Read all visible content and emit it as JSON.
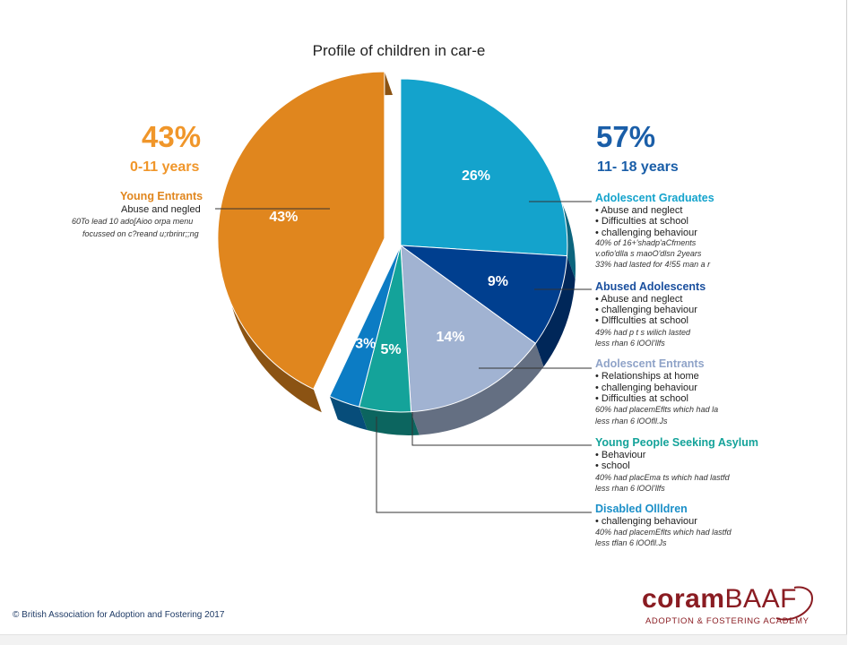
{
  "chart_data": {
    "type": "pie",
    "title": "Profile of children in car-e",
    "groups": [
      {
        "pct": "43%",
        "age": "0-11 years",
        "color": "#f0962a"
      },
      {
        "pct": "57%",
        "age": "11- 18 years",
        "color": "#1a5ea8"
      }
    ],
    "slices": [
      {
        "name": "Young Entrants",
        "value": 43,
        "label": "43%",
        "color": "#e0861e",
        "exploded": true
      },
      {
        "name": "Adolescent Graduates",
        "value": 26,
        "label": "26%",
        "color": "#14a3cc"
      },
      {
        "name": "Abused Adolescents",
        "value": 9,
        "label": "9%",
        "color": "#003f8f"
      },
      {
        "name": "Adolescent Entrants",
        "value": 14,
        "label": "14%",
        "color": "#a1b3d2"
      },
      {
        "name": "Young People Seeking Asylum",
        "value": 5,
        "label": "5%",
        "color": "#14a39a"
      },
      {
        "name": "Disabled Ollldren",
        "value": 3,
        "label": "3%",
        "color": "#0c7cc4"
      }
    ]
  },
  "annotations": [
    {
      "title": "Young Entrants",
      "title_color": "#e0861e",
      "lines": [
        "Abuse and negled"
      ],
      "notes": [
        "60To lead 10 ado[Aioo orpa menu",
        "focussed on c?reand u;rbrinr;;ng"
      ]
    },
    {
      "title": "Adolescent Graduates",
      "title_color": "#14a3cc",
      "lines": [
        "• Abuse and neglect",
        "• Difficulties at school",
        "• challenging behaviour"
      ],
      "notes": [
        "40% of 16+'shadp'aCfments",
        "v.ofio'dlla s maoO'dlsn 2years",
        "33% had lasted for 4!55 man a r"
      ]
    },
    {
      "title": "Abused Adolescents",
      "title_color": "#1a4f9e",
      "lines": [
        "• Abuse and neglect",
        "• challenging behaviour",
        "• Dlfflculties at school"
      ],
      "notes": [
        "49% had p t s wilich lasted",
        "less rhan 6 lOOI'llfs"
      ]
    },
    {
      "title": "Adolescent Entrants",
      "title_color": "#8fa3c8",
      "lines": [
        "• Relationships at home",
        "• challenging behaviour",
        "• Difficulties at school"
      ],
      "notes": [
        "60% had placemEflts which had la",
        "less rhan 6 lOOfll.Js"
      ]
    },
    {
      "title": "Young People Seeking Asylum",
      "title_color": "#14a39a",
      "lines": [
        "• Behaviour",
        "• school"
      ],
      "notes": [
        "40% had placEma ts which had lastfd",
        "less rhan 6 lOOI'llfs"
      ]
    },
    {
      "title": "Disabled Ollldren",
      "title_color": "#1a8fc8",
      "lines": [
        "• challenging behaviour"
      ],
      "notes": [
        "40% had placemEflts which had lastfd",
        "less tflan 6 lOOfll.Js"
      ]
    }
  ],
  "footer": {
    "copyright": "© British Association for Adoption and Fostering 2017",
    "logo_bold": "coram",
    "logo_light": "BAAF",
    "logo_sub": "ADOPTION & FOSTERING ACADEMY"
  }
}
